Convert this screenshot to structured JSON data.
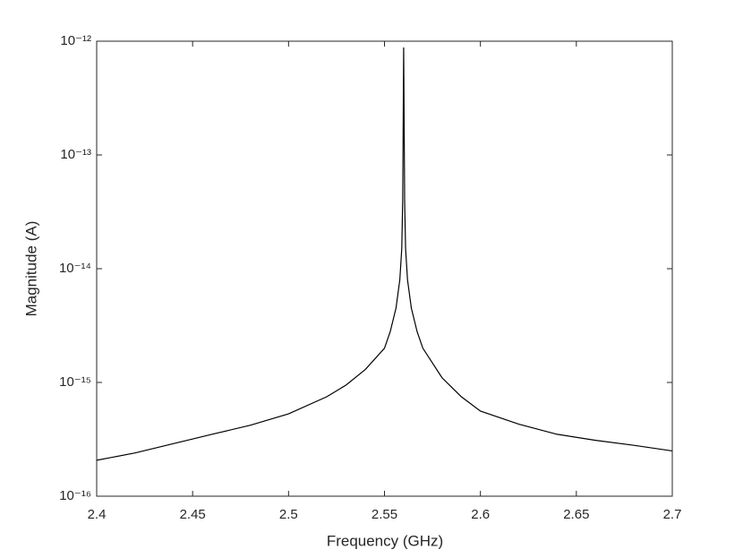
{
  "chart_data": {
    "type": "line",
    "xlabel": "Frequency (GHz)",
    "ylabel": "Magnitude (A)",
    "x": [
      2.4,
      2.42,
      2.44,
      2.46,
      2.48,
      2.5,
      2.52,
      2.53,
      2.54,
      2.55,
      2.553,
      2.556,
      2.558,
      2.559,
      2.5595,
      2.56,
      2.5605,
      2.561,
      2.562,
      2.564,
      2.567,
      2.57,
      2.58,
      2.59,
      2.6,
      2.62,
      2.64,
      2.66,
      2.68,
      2.7
    ],
    "series": [
      {
        "color": "#000000",
        "values": [
          2.07e-16,
          2.4e-16,
          2.9e-16,
          3.5e-16,
          4.2e-16,
          5.3e-16,
          7.5e-16,
          9.5e-16,
          1.3e-15,
          2e-15,
          2.8e-15,
          4.5e-15,
          8e-15,
          1.5e-14,
          4e-14,
          8.8e-13,
          4e-14,
          1.5e-14,
          8e-15,
          4.5e-15,
          2.8e-15,
          2e-15,
          1.1e-15,
          7.5e-16,
          5.6e-16,
          4.3e-16,
          3.5e-16,
          3.1e-16,
          2.8e-16,
          2.5e-16
        ]
      }
    ],
    "xlim": [
      2.4,
      2.7
    ],
    "xticks": [
      2.4,
      2.45,
      2.5,
      2.55,
      2.6,
      2.65,
      2.7
    ],
    "ylim": [
      1e-16,
      1e-12
    ],
    "yticks": [
      {
        "value": 1e-16,
        "label": "10⁻¹⁶"
      },
      {
        "value": 1e-15,
        "label": "10⁻¹⁵"
      },
      {
        "value": 1e-14,
        "label": "10⁻¹⁴"
      },
      {
        "value": 1e-13,
        "label": "10⁻¹³"
      },
      {
        "value": 1e-12,
        "label": "10⁻¹²"
      }
    ],
    "ylog": true,
    "grid": false
  }
}
